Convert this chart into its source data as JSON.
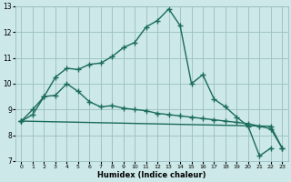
{
  "xlabel": "Humidex (Indice chaleur)",
  "bg_color": "#cce8e8",
  "grid_color": "#9abfbf",
  "line_color": "#1a6b5a",
  "x_data": [
    0,
    1,
    2,
    3,
    4,
    5,
    6,
    7,
    8,
    9,
    10,
    11,
    12,
    13,
    14,
    15,
    16,
    17,
    18,
    19,
    20,
    21,
    22,
    23
  ],
  "line1_y": [
    8.55,
    8.8,
    9.5,
    10.25,
    10.6,
    10.55,
    10.75,
    10.8,
    11.05,
    11.4,
    11.6,
    12.2,
    12.45,
    12.9,
    12.25,
    10.0,
    10.35,
    9.4,
    9.1,
    8.7,
    8.35,
    7.2,
    7.5,
    null
  ],
  "line2_y": [
    8.55,
    9.0,
    9.5,
    9.55,
    10.0,
    9.7,
    9.3,
    9.1,
    9.15,
    9.05,
    9.0,
    8.95,
    8.85,
    8.8,
    8.75,
    8.7,
    8.65,
    8.6,
    8.55,
    8.5,
    8.45,
    8.35,
    8.25,
    7.5
  ],
  "line3_y": [
    8.55,
    null,
    null,
    null,
    null,
    null,
    null,
    null,
    null,
    null,
    null,
    null,
    null,
    null,
    null,
    null,
    null,
    null,
    null,
    null,
    null,
    null,
    8.35,
    7.5
  ],
  "ylim": [
    7,
    13
  ],
  "xlim": [
    -0.5,
    23.5
  ],
  "yticks": [
    7,
    8,
    9,
    10,
    11,
    12,
    13
  ],
  "xticks": [
    0,
    1,
    2,
    3,
    4,
    5,
    6,
    7,
    8,
    9,
    10,
    11,
    12,
    13,
    14,
    15,
    16,
    17,
    18,
    19,
    20,
    21,
    22,
    23
  ],
  "marker": "+",
  "markersize": 4,
  "linewidth": 1.0
}
